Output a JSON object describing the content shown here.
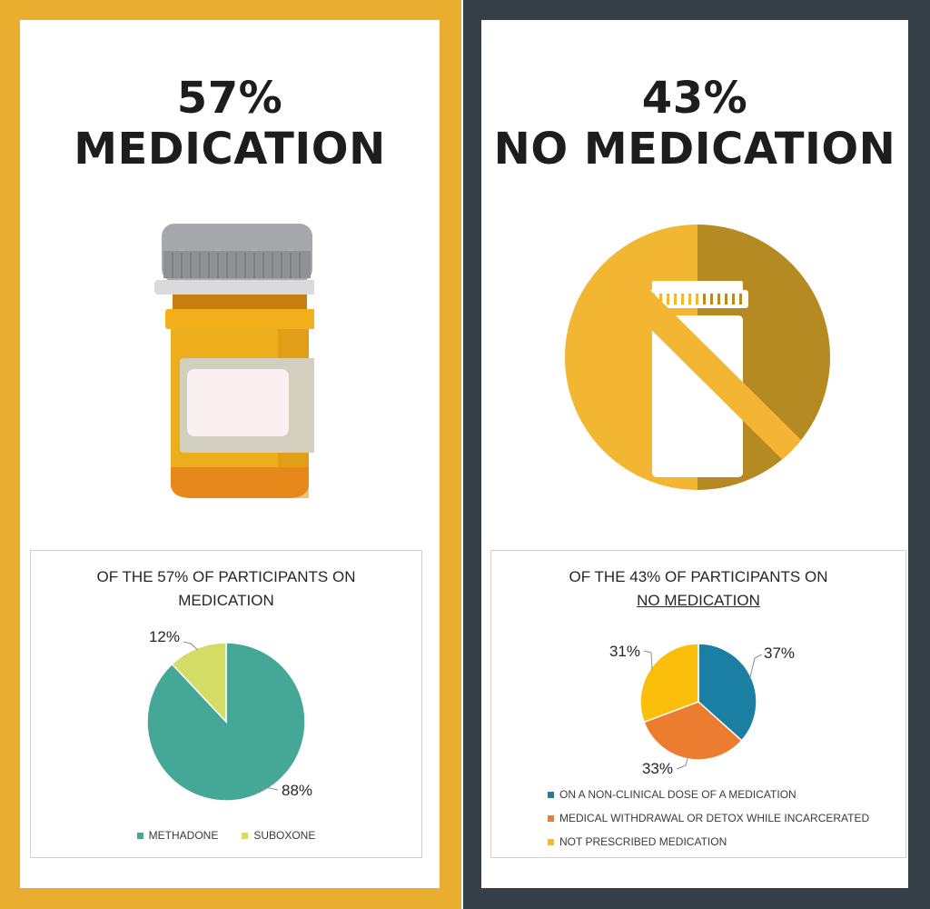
{
  "left_panel": {
    "percent": "57%",
    "label": "MEDICATION",
    "illustration_icon": "pill-bottle-icon",
    "colors": {
      "frame": "#e9ad30"
    }
  },
  "right_panel": {
    "percent": "43%",
    "label": "NO MEDICATION",
    "illustration_icon": "no-medication-icon",
    "colors": {
      "frame": "#353f47"
    }
  },
  "chart_data": [
    {
      "type": "pie",
      "title_line1": "OF THE 57% OF PARTICIPANTS ON",
      "title_line2": "MEDICATION",
      "categories": [
        "METHADONE",
        "SUBOXONE"
      ],
      "values": [
        88,
        12
      ],
      "data_labels": [
        "88%",
        "12%"
      ],
      "colors": [
        "#45a896",
        "#d3dc64"
      ],
      "legend_position": "bottom"
    },
    {
      "type": "pie",
      "title_line1": "OF THE 43% OF PARTICIPANTS ON",
      "title_line2": "NO MEDICATION",
      "categories": [
        "ON A NON-CLINICAL DOSE OF A MEDICATION",
        "MEDICAL WITHDRAWAL OR DETOX WHILE INCARCERATED",
        "NOT PRESCRIBED MEDICATION"
      ],
      "values": [
        37,
        33,
        31
      ],
      "data_labels": [
        "37%",
        "33%",
        "31%"
      ],
      "colors": [
        "#1a7fa3",
        "#ec7d30",
        "#fbbf0b"
      ],
      "legend_position": "bottom"
    }
  ]
}
